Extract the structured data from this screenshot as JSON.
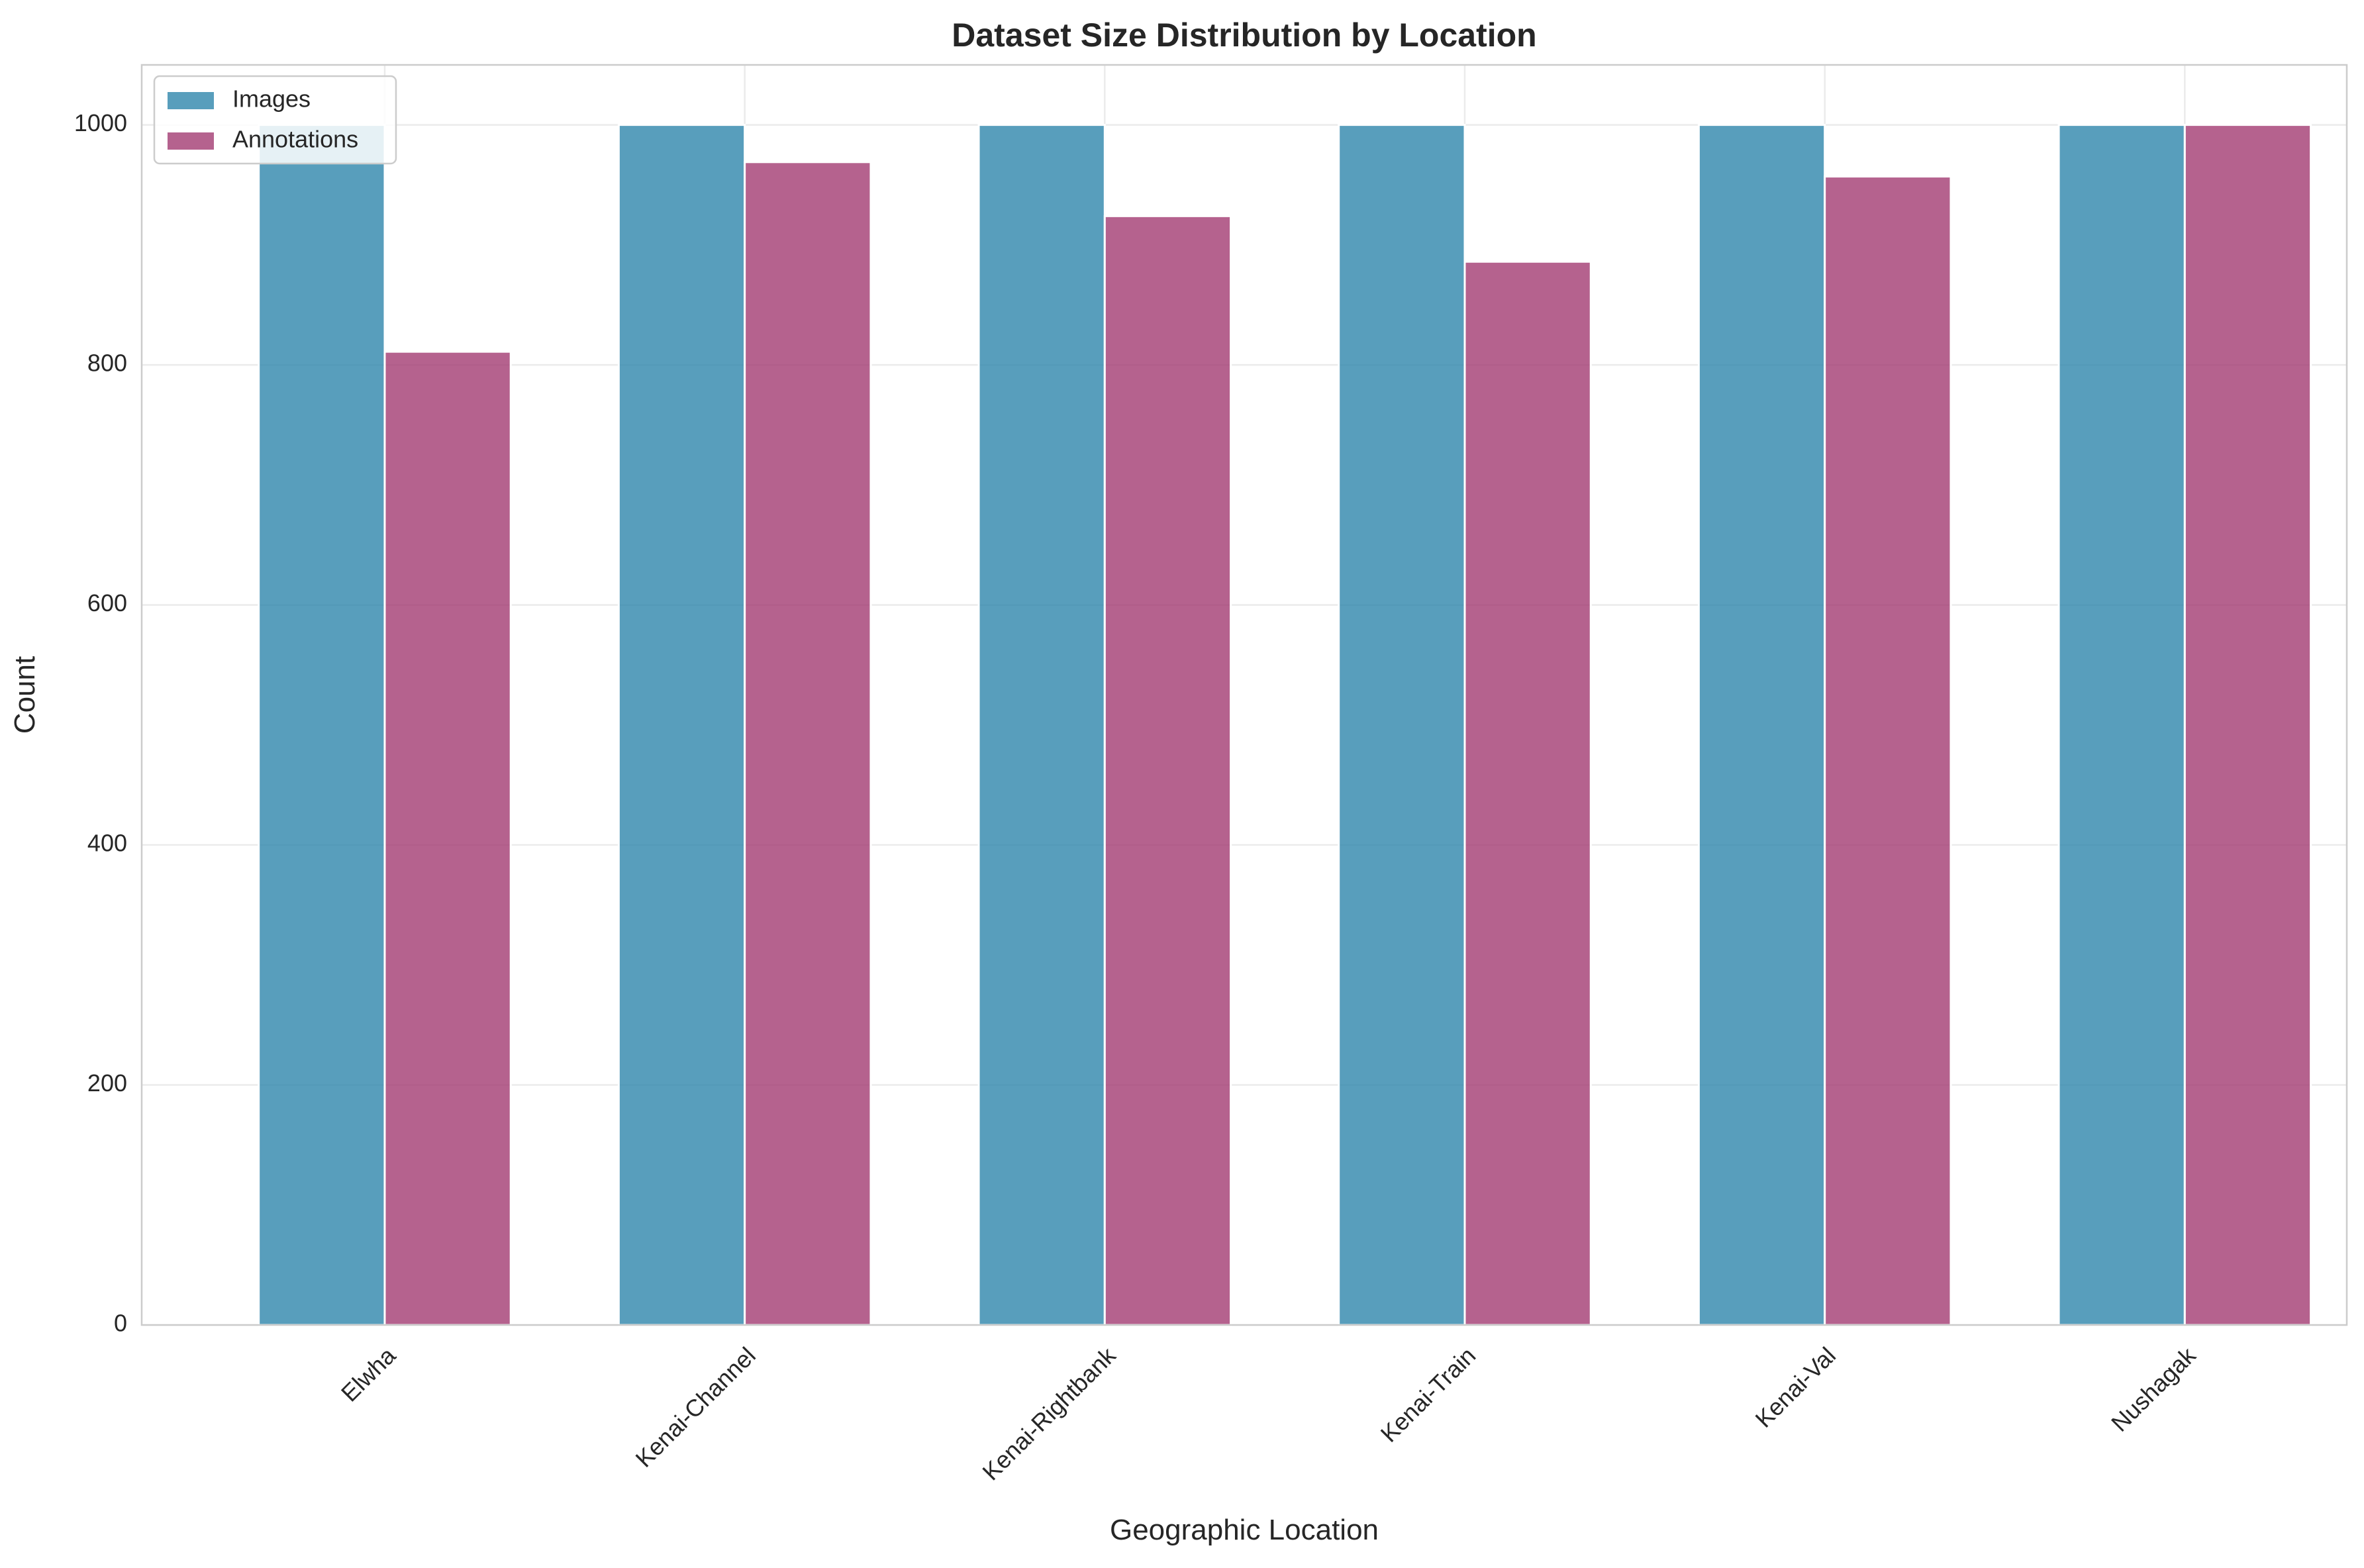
{
  "chart_data": {
    "type": "bar",
    "title": "Dataset Size Distribution by Location",
    "xlabel": "Geographic Location",
    "ylabel": "Count",
    "categories": [
      "Elwha",
      "Kenai-Channel",
      "Kenai-Rightbank",
      "Kenai-Train",
      "Kenai-Val",
      "Nushagak"
    ],
    "series": [
      {
        "name": "Images",
        "values": [
          1000,
          1000,
          1000,
          1000,
          1000,
          1000
        ],
        "color": "#2E86AB"
      },
      {
        "name": "Annotations",
        "values": [
          811,
          969,
          924,
          886,
          957,
          1000
        ],
        "color": "#A23B72"
      }
    ],
    "ylim": [
      0,
      1050
    ],
    "yticks": [
      0,
      200,
      400,
      600,
      800,
      1000
    ],
    "grid": true,
    "legend_position": "top-left"
  }
}
